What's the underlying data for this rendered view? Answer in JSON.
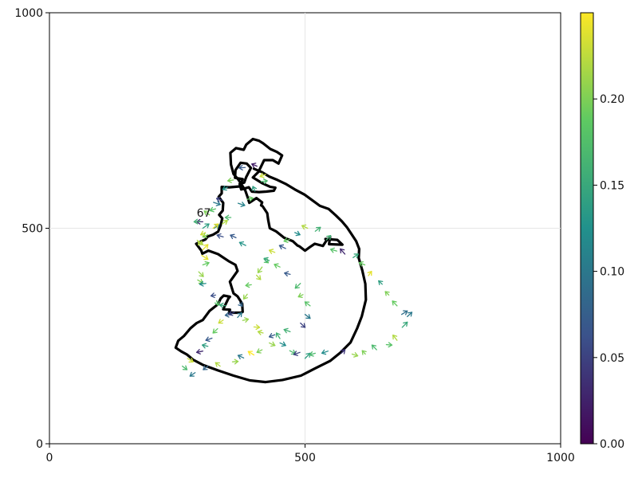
{
  "chart_data": {
    "type": "quiver",
    "title": "",
    "xlabel": "",
    "ylabel": "",
    "xlim": [
      0,
      1000
    ],
    "ylim": [
      0,
      1000
    ],
    "xticks": [
      0,
      500,
      1000
    ],
    "yticks": [
      0,
      500,
      1000
    ],
    "xtick_labels": [
      "0",
      "500",
      "1000"
    ],
    "ytick_labels": [
      "0",
      "500",
      "1000"
    ],
    "grid": true,
    "colormap": [
      "#440154",
      "#3b528b",
      "#21918c",
      "#5ec962",
      "#fde725"
    ],
    "colorbar": {
      "range": [
        0,
        0.25
      ],
      "ticks": [
        0.0,
        0.05,
        0.1,
        0.15,
        0.2
      ],
      "tick_labels": [
        "0.00",
        "0.05",
        "0.10",
        "0.15",
        "0.20"
      ]
    },
    "annotation": {
      "text": "67",
      "x": 288,
      "y": 527
    },
    "outline_path": [
      [
        540,
        475
      ],
      [
        563,
        473
      ],
      [
        573,
        462
      ],
      [
        547,
        463
      ],
      [
        549,
        480
      ],
      [
        541,
        470
      ],
      [
        535,
        459
      ],
      [
        519,
        464
      ],
      [
        509,
        456
      ],
      [
        500,
        448
      ],
      [
        489,
        458
      ],
      [
        485,
        460
      ],
      [
        476,
        470
      ],
      [
        459,
        478
      ],
      [
        443,
        493
      ],
      [
        431,
        500
      ],
      [
        428,
        519
      ],
      [
        426,
        535
      ],
      [
        417,
        551
      ],
      [
        414,
        553
      ],
      [
        416,
        560
      ],
      [
        405,
        570
      ],
      [
        391,
        559
      ],
      [
        388,
        571
      ],
      [
        383,
        588
      ],
      [
        370,
        612
      ],
      [
        360,
        626
      ],
      [
        355,
        648
      ],
      [
        354,
        675
      ],
      [
        365,
        686
      ],
      [
        380,
        682
      ],
      [
        385,
        694
      ],
      [
        398,
        707
      ],
      [
        410,
        703
      ],
      [
        418,
        697
      ],
      [
        432,
        684
      ],
      [
        445,
        677
      ],
      [
        455,
        669
      ],
      [
        448,
        650
      ],
      [
        437,
        658
      ],
      [
        420,
        658
      ],
      [
        409,
        631
      ],
      [
        398,
        618
      ],
      [
        417,
        604
      ],
      [
        432,
        596
      ],
      [
        442,
        594
      ],
      [
        439,
        587
      ],
      [
        424,
        585
      ],
      [
        410,
        584
      ],
      [
        396,
        585
      ],
      [
        390,
        595
      ],
      [
        375,
        590
      ],
      [
        372,
        603
      ],
      [
        381,
        606
      ],
      [
        385,
        619
      ],
      [
        394,
        640
      ],
      [
        386,
        650
      ],
      [
        374,
        652
      ],
      [
        364,
        635
      ],
      [
        363,
        617
      ],
      [
        378,
        614
      ],
      [
        372,
        597
      ],
      [
        352,
        595
      ],
      [
        337,
        596
      ],
      [
        337,
        581
      ],
      [
        331,
        573
      ],
      [
        340,
        559
      ],
      [
        339,
        541
      ],
      [
        332,
        531
      ],
      [
        338,
        523
      ],
      [
        335,
        507
      ],
      [
        330,
        492
      ],
      [
        320,
        485
      ],
      [
        310,
        481
      ],
      [
        305,
        474
      ],
      [
        299,
        471
      ],
      [
        287,
        464
      ],
      [
        297,
        448
      ],
      [
        299,
        441
      ],
      [
        311,
        448
      ],
      [
        330,
        440
      ],
      [
        350,
        424
      ],
      [
        364,
        415
      ],
      [
        368,
        401
      ],
      [
        356,
        381
      ],
      [
        353,
        376
      ],
      [
        360,
        349
      ],
      [
        368,
        342
      ],
      [
        377,
        325
      ],
      [
        378,
        306
      ],
      [
        375,
        304
      ],
      [
        351,
        304
      ],
      [
        353,
        311
      ],
      [
        340,
        312
      ],
      [
        343,
        320
      ],
      [
        350,
        337
      ],
      [
        353,
        341
      ],
      [
        341,
        344
      ],
      [
        335,
        337
      ],
      [
        330,
        324
      ],
      [
        313,
        308
      ],
      [
        300,
        287
      ],
      [
        288,
        280
      ],
      [
        276,
        268
      ],
      [
        263,
        250
      ],
      [
        252,
        239
      ],
      [
        247,
        223
      ],
      [
        258,
        214
      ],
      [
        269,
        207
      ],
      [
        281,
        195
      ],
      [
        300,
        183
      ],
      [
        330,
        170
      ],
      [
        360,
        158
      ],
      [
        392,
        147
      ],
      [
        423,
        143
      ],
      [
        456,
        148
      ],
      [
        492,
        158
      ],
      [
        520,
        175
      ],
      [
        549,
        192
      ],
      [
        569,
        211
      ],
      [
        589,
        235
      ],
      [
        602,
        268
      ],
      [
        611,
        296
      ],
      [
        619,
        334
      ],
      [
        618,
        371
      ],
      [
        612,
        402
      ],
      [
        605,
        431
      ],
      [
        606,
        452
      ],
      [
        600,
        470
      ],
      [
        590,
        488
      ],
      [
        582,
        502
      ],
      [
        572,
        516
      ],
      [
        560,
        530
      ],
      [
        546,
        545
      ],
      [
        529,
        552
      ],
      [
        514,
        565
      ],
      [
        499,
        578
      ],
      [
        480,
        590
      ],
      [
        462,
        603
      ],
      [
        446,
        612
      ],
      [
        430,
        620
      ],
      [
        416,
        630
      ],
      [
        400,
        638
      ]
    ],
    "outline_note": "",
    "arrows": [
      [
        289,
        472,
        300,
        462,
        0.22
      ],
      [
        300,
        450,
        310,
        462,
        0.24
      ],
      [
        310,
        485,
        300,
        480,
        0.2
      ],
      [
        300,
        500,
        312,
        510,
        0.14
      ],
      [
        300,
        515,
        288,
        515,
        0.03
      ],
      [
        313,
        531,
        303,
        540,
        0.2
      ],
      [
        325,
        545,
        314,
        541,
        0.18
      ],
      [
        321,
        560,
        334,
        555,
        0.1
      ],
      [
        338,
        565,
        327,
        569,
        0.05
      ],
      [
        348,
        595,
        339,
        590,
        0.13
      ],
      [
        360,
        612,
        349,
        610,
        0.2
      ],
      [
        383,
        641,
        371,
        640,
        0.07
      ],
      [
        406,
        644,
        396,
        649,
        0.02
      ],
      [
        423,
        625,
        412,
        620,
        0.23
      ],
      [
        414,
        608,
        426,
        610,
        0.17
      ],
      [
        402,
        586,
        398,
        597,
        0.14
      ],
      [
        387,
        567,
        398,
        570,
        0.19
      ],
      [
        369,
        558,
        382,
        553,
        0.11
      ],
      [
        355,
        525,
        344,
        525,
        0.17
      ],
      [
        338,
        510,
        348,
        518,
        0.22
      ],
      [
        322,
        500,
        332,
        508,
        0.1
      ],
      [
        305,
        490,
        296,
        485,
        0.23
      ],
      [
        296,
        462,
        291,
        470,
        0.22
      ],
      [
        298,
        437,
        310,
        428,
        0.24
      ],
      [
        300,
        415,
        312,
        420,
        0.19
      ],
      [
        292,
        399,
        301,
        388,
        0.21
      ],
      [
        290,
        380,
        300,
        373,
        0.2
      ],
      [
        306,
        372,
        294,
        370,
        0.12
      ],
      [
        325,
        345,
        316,
        343,
        0.06
      ],
      [
        327,
        332,
        330,
        321,
        0.18
      ],
      [
        345,
        320,
        333,
        322,
        0.15
      ],
      [
        356,
        300,
        344,
        298,
        0.08
      ],
      [
        368,
        293,
        376,
        304,
        0.1
      ],
      [
        378,
        286,
        389,
        289,
        0.21
      ],
      [
        400,
        271,
        411,
        270,
        0.23
      ],
      [
        418,
        257,
        408,
        260,
        0.22
      ],
      [
        441,
        253,
        430,
        248,
        0.07
      ],
      [
        451,
        234,
        462,
        228,
        0.12
      ],
      [
        470,
        216,
        481,
        209,
        0.17
      ],
      [
        490,
        212,
        478,
        207,
        0.05
      ],
      [
        500,
        198,
        510,
        210,
        0.14
      ],
      [
        520,
        210,
        509,
        206,
        0.17
      ],
      [
        545,
        215,
        533,
        210,
        0.12
      ],
      [
        571,
        210,
        578,
        218,
        0.04
      ],
      [
        592,
        208,
        603,
        204,
        0.21
      ],
      [
        618,
        208,
        612,
        216,
        0.2
      ],
      [
        640,
        218,
        631,
        229,
        0.17
      ],
      [
        659,
        230,
        670,
        229,
        0.18
      ],
      [
        680,
        240,
        672,
        252,
        0.22
      ],
      [
        690,
        270,
        700,
        282,
        0.15
      ],
      [
        700,
        295,
        709,
        305,
        0.1
      ],
      [
        689,
        300,
        700,
        308,
        0.09
      ],
      [
        680,
        320,
        671,
        331,
        0.19
      ],
      [
        664,
        345,
        657,
        353,
        0.2
      ],
      [
        651,
        370,
        644,
        378,
        0.14
      ],
      [
        624,
        390,
        630,
        400,
        0.24
      ],
      [
        617,
        415,
        606,
        420,
        0.19
      ],
      [
        594,
        432,
        604,
        440,
        0.15
      ],
      [
        578,
        440,
        569,
        452,
        0.03
      ],
      [
        562,
        447,
        550,
        451,
        0.18
      ],
      [
        542,
        473,
        550,
        483,
        0.16
      ],
      [
        520,
        493,
        530,
        502,
        0.16
      ],
      [
        505,
        500,
        494,
        506,
        0.22
      ],
      [
        480,
        490,
        490,
        485,
        0.12
      ],
      [
        470,
        474,
        459,
        470,
        0.19
      ],
      [
        462,
        453,
        450,
        460,
        0.07
      ],
      [
        441,
        444,
        430,
        449,
        0.23
      ],
      [
        420,
        428,
        428,
        420,
        0.18
      ],
      [
        416,
        410,
        408,
        397,
        0.21
      ],
      [
        405,
        391,
        413,
        381,
        0.22
      ],
      [
        395,
        369,
        384,
        367,
        0.19
      ],
      [
        387,
        347,
        380,
        336,
        0.21
      ],
      [
        372,
        327,
        377,
        319,
        0.08
      ],
      [
        362,
        305,
        351,
        300,
        0.05
      ],
      [
        340,
        287,
        331,
        280,
        0.23
      ],
      [
        329,
        267,
        320,
        257,
        0.19
      ],
      [
        318,
        245,
        306,
        240,
        0.07
      ],
      [
        310,
        226,
        299,
        229,
        0.14
      ],
      [
        300,
        215,
        288,
        212,
        0.03
      ],
      [
        270,
        198,
        281,
        190,
        0.23
      ],
      [
        260,
        180,
        269,
        172,
        0.17
      ],
      [
        285,
        165,
        275,
        157,
        0.1
      ],
      [
        310,
        180,
        301,
        172,
        0.08
      ],
      [
        334,
        180,
        325,
        188,
        0.22
      ],
      [
        358,
        190,
        369,
        191,
        0.21
      ],
      [
        380,
        199,
        369,
        205,
        0.1
      ],
      [
        400,
        206,
        389,
        214,
        0.25
      ],
      [
        416,
        218,
        406,
        212,
        0.2
      ],
      [
        430,
        234,
        441,
        228,
        0.21
      ],
      [
        451,
        244,
        444,
        257,
        0.16
      ],
      [
        471,
        260,
        459,
        265,
        0.16
      ],
      [
        491,
        280,
        500,
        270,
        0.05
      ],
      [
        500,
        300,
        510,
        291,
        0.1
      ],
      [
        510,
        320,
        500,
        329,
        0.18
      ],
      [
        496,
        346,
        487,
        341,
        0.2
      ],
      [
        491,
        372,
        481,
        361,
        0.17
      ],
      [
        471,
        393,
        460,
        396,
        0.07
      ],
      [
        451,
        410,
        440,
        416,
        0.19
      ],
      [
        430,
        425,
        420,
        430,
        0.15
      ],
      [
        384,
        460,
        372,
        467,
        0.13
      ],
      [
        365,
        478,
        354,
        484,
        0.07
      ],
      [
        340,
        480,
        328,
        484,
        0.06
      ],
      [
        320,
        500,
        330,
        510,
        0.24
      ],
      [
        295,
        516,
        283,
        515,
        0.16
      ]
    ]
  }
}
